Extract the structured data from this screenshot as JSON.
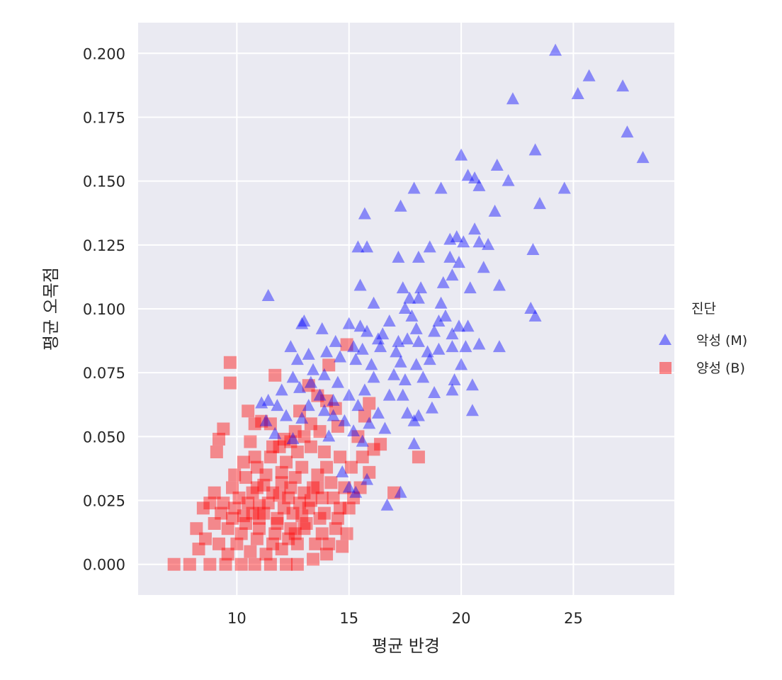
{
  "chart_data": {
    "type": "scatter",
    "title": "",
    "xlabel": "평균 반경",
    "ylabel": "평균 오목점",
    "xlim": [
      5.6,
      29.5
    ],
    "ylim": [
      -0.012,
      0.212
    ],
    "xticks": [
      10,
      15,
      20,
      25
    ],
    "yticks": [
      0.0,
      0.025,
      0.05,
      0.075,
      0.1,
      0.125,
      0.15,
      0.175,
      0.2
    ],
    "xtick_labels": [
      "10",
      "15",
      "20",
      "25"
    ],
    "ytick_labels": [
      "0.000",
      "0.025",
      "0.050",
      "0.075",
      "0.100",
      "0.125",
      "0.150",
      "0.175",
      "0.200"
    ],
    "grid": true,
    "background": "#eaeaf2",
    "legend": {
      "title": "진단",
      "placement": "right",
      "entries": [
        "악성 (M)",
        "양성 (B)"
      ]
    },
    "series": [
      {
        "name": "악성 (M)",
        "marker": "triangle",
        "color": "#0000ff",
        "points": [
          [
            24.2,
            0.201
          ],
          [
            25.7,
            0.191
          ],
          [
            25.2,
            0.184
          ],
          [
            27.2,
            0.187
          ],
          [
            22.3,
            0.182
          ],
          [
            27.4,
            0.169
          ],
          [
            28.1,
            0.159
          ],
          [
            23.3,
            0.162
          ],
          [
            20.0,
            0.16
          ],
          [
            21.6,
            0.156
          ],
          [
            20.3,
            0.152
          ],
          [
            20.6,
            0.151
          ],
          [
            22.1,
            0.15
          ],
          [
            20.8,
            0.148
          ],
          [
            17.9,
            0.147
          ],
          [
            19.1,
            0.147
          ],
          [
            24.6,
            0.147
          ],
          [
            23.5,
            0.141
          ],
          [
            17.3,
            0.14
          ],
          [
            21.5,
            0.138
          ],
          [
            15.7,
            0.137
          ],
          [
            20.6,
            0.131
          ],
          [
            19.8,
            0.128
          ],
          [
            19.5,
            0.127
          ],
          [
            20.1,
            0.126
          ],
          [
            20.8,
            0.126
          ],
          [
            21.2,
            0.125
          ],
          [
            15.4,
            0.124
          ],
          [
            15.8,
            0.124
          ],
          [
            18.6,
            0.124
          ],
          [
            23.2,
            0.123
          ],
          [
            17.2,
            0.12
          ],
          [
            18.1,
            0.12
          ],
          [
            19.5,
            0.12
          ],
          [
            19.9,
            0.118
          ],
          [
            21.0,
            0.116
          ],
          [
            19.6,
            0.113
          ],
          [
            19.2,
            0.11
          ],
          [
            15.5,
            0.109
          ],
          [
            17.4,
            0.108
          ],
          [
            18.2,
            0.108
          ],
          [
            20.4,
            0.108
          ],
          [
            21.7,
            0.109
          ],
          [
            11.4,
            0.105
          ],
          [
            17.7,
            0.104
          ],
          [
            18.1,
            0.104
          ],
          [
            17.5,
            0.1
          ],
          [
            19.1,
            0.102
          ],
          [
            16.1,
            0.102
          ],
          [
            23.1,
            0.1
          ],
          [
            23.3,
            0.097
          ],
          [
            19.3,
            0.097
          ],
          [
            17.8,
            0.097
          ],
          [
            19.0,
            0.095
          ],
          [
            16.8,
            0.095
          ],
          [
            15.0,
            0.094
          ],
          [
            15.5,
            0.093
          ],
          [
            15.8,
            0.091
          ],
          [
            16.5,
            0.09
          ],
          [
            18.0,
            0.092
          ],
          [
            19.9,
            0.093
          ],
          [
            20.3,
            0.093
          ],
          [
            18.8,
            0.091
          ],
          [
            19.6,
            0.09
          ],
          [
            16.3,
            0.088
          ],
          [
            17.2,
            0.087
          ],
          [
            17.6,
            0.088
          ],
          [
            18.1,
            0.087
          ],
          [
            14.4,
            0.087
          ],
          [
            15.2,
            0.085
          ],
          [
            15.6,
            0.084
          ],
          [
            16.4,
            0.085
          ],
          [
            17.1,
            0.083
          ],
          [
            18.5,
            0.083
          ],
          [
            19.0,
            0.084
          ],
          [
            19.6,
            0.085
          ],
          [
            20.2,
            0.085
          ],
          [
            20.8,
            0.086
          ],
          [
            21.7,
            0.085
          ],
          [
            12.4,
            0.085
          ],
          [
            13.2,
            0.082
          ],
          [
            14.0,
            0.083
          ],
          [
            14.6,
            0.081
          ],
          [
            15.3,
            0.08
          ],
          [
            16.0,
            0.078
          ],
          [
            17.3,
            0.079
          ],
          [
            18.0,
            0.078
          ],
          [
            18.6,
            0.08
          ],
          [
            20.0,
            0.078
          ],
          [
            12.9,
            0.094
          ],
          [
            13.8,
            0.092
          ],
          [
            13.0,
            0.095
          ],
          [
            12.7,
            0.08
          ],
          [
            12.5,
            0.073
          ],
          [
            13.4,
            0.076
          ],
          [
            13.9,
            0.074
          ],
          [
            14.5,
            0.071
          ],
          [
            16.1,
            0.073
          ],
          [
            17.0,
            0.074
          ],
          [
            17.5,
            0.072
          ],
          [
            18.3,
            0.073
          ],
          [
            19.7,
            0.072
          ],
          [
            20.5,
            0.07
          ],
          [
            12.0,
            0.068
          ],
          [
            12.8,
            0.069
          ],
          [
            13.3,
            0.071
          ],
          [
            13.7,
            0.066
          ],
          [
            14.3,
            0.064
          ],
          [
            15.0,
            0.066
          ],
          [
            15.7,
            0.068
          ],
          [
            16.8,
            0.066
          ],
          [
            17.4,
            0.066
          ],
          [
            18.8,
            0.067
          ],
          [
            19.6,
            0.068
          ],
          [
            20.5,
            0.06
          ],
          [
            13.2,
            0.062
          ],
          [
            13.9,
            0.06
          ],
          [
            14.3,
            0.058
          ],
          [
            15.4,
            0.062
          ],
          [
            16.3,
            0.059
          ],
          [
            17.6,
            0.059
          ],
          [
            18.1,
            0.058
          ],
          [
            18.7,
            0.061
          ],
          [
            11.8,
            0.062
          ],
          [
            11.1,
            0.063
          ],
          [
            12.2,
            0.058
          ],
          [
            12.9,
            0.057
          ],
          [
            14.8,
            0.056
          ],
          [
            15.2,
            0.052
          ],
          [
            15.9,
            0.055
          ],
          [
            16.6,
            0.053
          ],
          [
            17.9,
            0.056
          ],
          [
            11.3,
            0.056
          ],
          [
            11.7,
            0.051
          ],
          [
            12.5,
            0.049
          ],
          [
            14.1,
            0.05
          ],
          [
            15.6,
            0.048
          ],
          [
            17.9,
            0.047
          ],
          [
            14.7,
            0.036
          ],
          [
            15.0,
            0.03
          ],
          [
            15.8,
            0.033
          ],
          [
            15.3,
            0.028
          ],
          [
            16.7,
            0.023
          ],
          [
            17.3,
            0.028
          ],
          [
            11.4,
            0.064
          ]
        ]
      },
      {
        "name": "양성 (B)",
        "marker": "square",
        "color": "#ff0000",
        "points": [
          [
            9.7,
            0.079
          ],
          [
            9.7,
            0.071
          ],
          [
            9.4,
            0.053
          ],
          [
            9.2,
            0.049
          ],
          [
            9.1,
            0.044
          ],
          [
            10.5,
            0.06
          ],
          [
            11.7,
            0.074
          ],
          [
            12.8,
            0.06
          ],
          [
            14.1,
            0.078
          ],
          [
            14.9,
            0.086
          ],
          [
            12.1,
            0.049
          ],
          [
            11.1,
            0.056
          ],
          [
            11.5,
            0.055
          ],
          [
            10.8,
            0.055
          ],
          [
            13.2,
            0.07
          ],
          [
            13.6,
            0.066
          ],
          [
            14.0,
            0.064
          ],
          [
            14.4,
            0.061
          ],
          [
            15.9,
            0.063
          ],
          [
            15.7,
            0.058
          ],
          [
            16.4,
            0.047
          ],
          [
            16.1,
            0.045
          ],
          [
            17.0,
            0.028
          ],
          [
            18.1,
            0.042
          ],
          [
            13.3,
            0.055
          ],
          [
            12.6,
            0.052
          ],
          [
            11.9,
            0.046
          ],
          [
            10.3,
            0.04
          ],
          [
            10.6,
            0.048
          ],
          [
            9.9,
            0.035
          ],
          [
            9.8,
            0.03
          ],
          [
            9.0,
            0.028
          ],
          [
            8.8,
            0.024
          ],
          [
            8.5,
            0.022
          ],
          [
            8.2,
            0.014
          ],
          [
            8.6,
            0.01
          ],
          [
            8.3,
            0.006
          ],
          [
            7.2,
            0.0
          ],
          [
            7.9,
            0.0
          ],
          [
            8.8,
            0.0
          ],
          [
            9.5,
            0.0
          ],
          [
            10.2,
            0.0
          ],
          [
            10.8,
            0.0
          ],
          [
            11.5,
            0.0
          ],
          [
            12.2,
            0.0
          ],
          [
            12.7,
            0.0
          ],
          [
            13.4,
            0.002
          ],
          [
            14.0,
            0.004
          ],
          [
            14.7,
            0.007
          ],
          [
            13.8,
            0.012
          ],
          [
            13.0,
            0.014
          ],
          [
            12.3,
            0.01
          ],
          [
            11.6,
            0.008
          ],
          [
            10.9,
            0.01
          ],
          [
            10.2,
            0.012
          ],
          [
            9.6,
            0.014
          ],
          [
            9.0,
            0.016
          ],
          [
            9.3,
            0.02
          ],
          [
            9.9,
            0.022
          ],
          [
            10.5,
            0.024
          ],
          [
            11.2,
            0.02
          ],
          [
            11.8,
            0.018
          ],
          [
            12.5,
            0.02
          ],
          [
            13.2,
            0.022
          ],
          [
            13.9,
            0.02
          ],
          [
            14.5,
            0.018
          ],
          [
            15.0,
            0.022
          ],
          [
            15.2,
            0.026
          ],
          [
            14.8,
            0.03
          ],
          [
            14.2,
            0.032
          ],
          [
            13.6,
            0.035
          ],
          [
            12.9,
            0.038
          ],
          [
            12.2,
            0.04
          ],
          [
            11.5,
            0.042
          ],
          [
            10.9,
            0.038
          ],
          [
            10.4,
            0.034
          ],
          [
            10.9,
            0.03
          ],
          [
            11.6,
            0.028
          ],
          [
            12.3,
            0.026
          ],
          [
            13.0,
            0.028
          ],
          [
            13.6,
            0.03
          ],
          [
            14.3,
            0.026
          ],
          [
            12.0,
            0.032
          ],
          [
            12.6,
            0.034
          ],
          [
            11.3,
            0.035
          ],
          [
            10.7,
            0.028
          ],
          [
            10.1,
            0.026
          ],
          [
            9.8,
            0.018
          ],
          [
            10.4,
            0.016
          ],
          [
            11.0,
            0.014
          ],
          [
            11.7,
            0.012
          ],
          [
            12.4,
            0.014
          ],
          [
            13.1,
            0.016
          ],
          [
            13.7,
            0.018
          ],
          [
            14.4,
            0.014
          ],
          [
            12.8,
            0.024
          ],
          [
            12.1,
            0.022
          ],
          [
            11.4,
            0.024
          ],
          [
            10.7,
            0.02
          ],
          [
            10.0,
            0.008
          ],
          [
            10.6,
            0.005
          ],
          [
            11.3,
            0.004
          ],
          [
            12.0,
            0.006
          ],
          [
            12.7,
            0.008
          ],
          [
            13.5,
            0.008
          ],
          [
            9.2,
            0.008
          ],
          [
            9.6,
            0.004
          ],
          [
            15.1,
            0.038
          ],
          [
            14.6,
            0.042
          ],
          [
            13.9,
            0.044
          ],
          [
            13.3,
            0.046
          ],
          [
            12.7,
            0.044
          ],
          [
            12.0,
            0.036
          ],
          [
            11.2,
            0.031
          ],
          [
            14.9,
            0.012
          ],
          [
            14.1,
            0.008
          ],
          [
            11.9,
            0.027
          ],
          [
            12.4,
            0.03
          ],
          [
            13.3,
            0.025
          ],
          [
            10.3,
            0.019
          ],
          [
            11.0,
            0.023
          ],
          [
            11.8,
            0.016
          ],
          [
            12.9,
            0.019
          ],
          [
            13.8,
            0.026
          ],
          [
            14.6,
            0.022
          ],
          [
            9.4,
            0.024
          ],
          [
            10.8,
            0.042
          ],
          [
            11.6,
            0.046
          ],
          [
            12.4,
            0.048
          ],
          [
            13.0,
            0.05
          ],
          [
            13.7,
            0.052
          ],
          [
            14.5,
            0.054
          ],
          [
            15.4,
            0.05
          ],
          [
            15.6,
            0.042
          ],
          [
            15.9,
            0.036
          ],
          [
            15.5,
            0.03
          ],
          [
            14.0,
            0.038
          ],
          [
            11.0,
            0.018
          ],
          [
            12.6,
            0.012
          ],
          [
            13.4,
            0.03
          ]
        ]
      }
    ]
  }
}
